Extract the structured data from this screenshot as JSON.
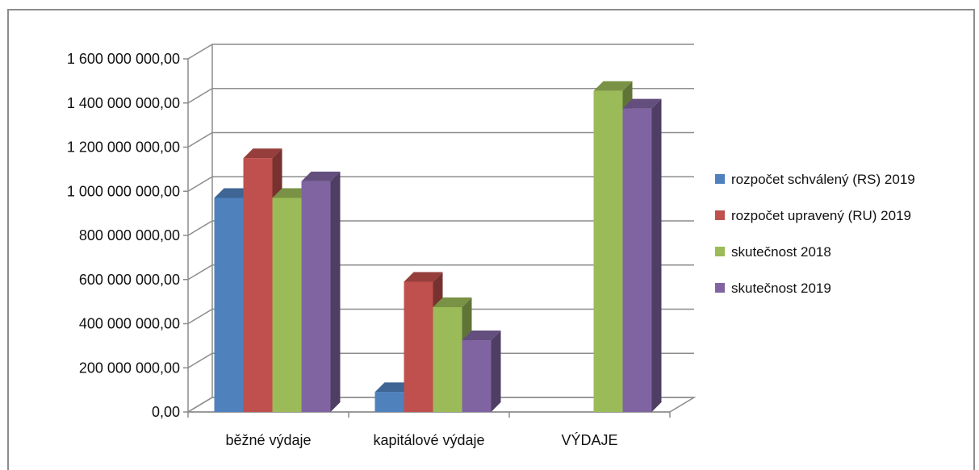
{
  "chart_data": {
    "type": "bar",
    "categories": [
      "běžné výdaje",
      "kapitálové výdaje",
      "VÝDAJE"
    ],
    "series": [
      {
        "name": "rozpočet schválený (RS) 2019",
        "color": "#4F81BD",
        "values": [
          970000000,
          90000000,
          0
        ]
      },
      {
        "name": "rozpočet upravený (RU) 2019",
        "color": "#C0504D",
        "values": [
          1150000000,
          590000000,
          0
        ]
      },
      {
        "name": "skutečnost 2018",
        "color": "#9BBB59",
        "values": [
          970000000,
          475000000,
          1455000000
        ]
      },
      {
        "name": "skutečnost 2019",
        "color": "#8064A2",
        "values": [
          1045000000,
          325000000,
          1375000000
        ]
      }
    ],
    "yticks": [
      "0,00",
      "200 000 000,00",
      "400 000 000,00",
      "600 000 000,00",
      "800 000 000,00",
      "1 000 000 000,00",
      "1 200 000 000,00",
      "1 400 000 000,00",
      "1 600 000 000,00"
    ],
    "ylim": [
      0,
      1600000000
    ],
    "grid": true,
    "legend_position": "right",
    "title": "",
    "xlabel": "",
    "ylabel": ""
  }
}
